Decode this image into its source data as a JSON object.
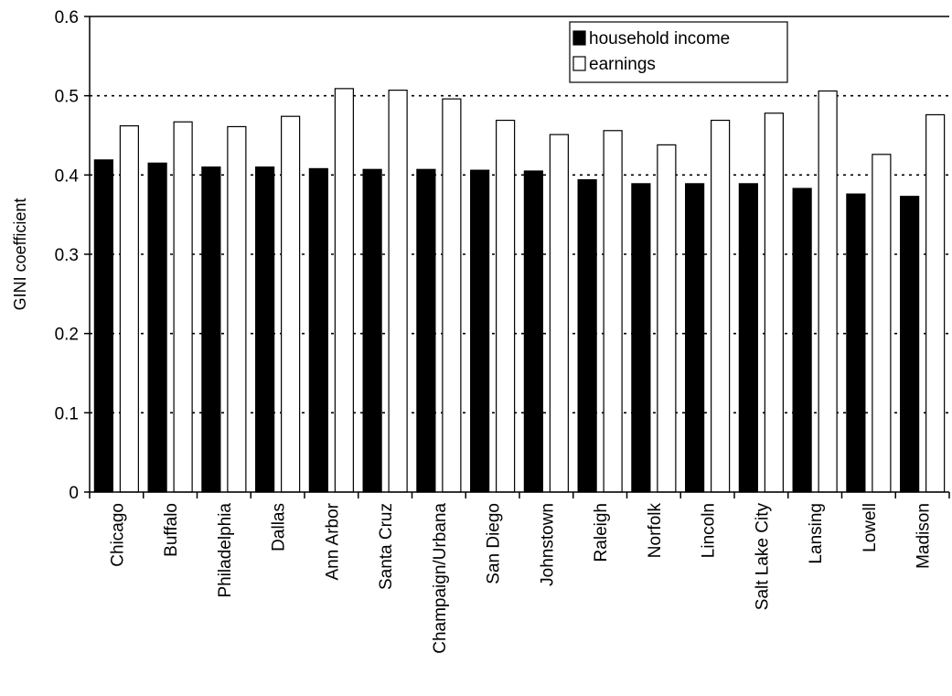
{
  "chart_data": {
    "type": "bar",
    "ylabel": "GINI coefficient",
    "ylim": [
      0,
      0.6
    ],
    "yticks": [
      "0",
      "0.1",
      "0.2",
      "0.3",
      "0.4",
      "0.5",
      "0.6"
    ],
    "ytick_values": [
      0,
      0.1,
      0.2,
      0.3,
      0.4,
      0.5,
      0.6
    ],
    "grid": "dotted horizontal at 0.1–0.5",
    "legend_position": "top-right",
    "categories": [
      "Chicago",
      "Buffalo",
      "Philadelphia",
      "Dallas",
      "Ann Arbor",
      "Santa Cruz",
      "Champaign/Urbana",
      "San Diego",
      "Johnstown",
      "Raleigh",
      "Norfolk",
      "Lincoln",
      "Salt Lake City",
      "Lansing",
      "Lowell",
      "Madison"
    ],
    "series": [
      {
        "name": "household income",
        "color": "#000000",
        "values": [
          0.419,
          0.415,
          0.41,
          0.41,
          0.408,
          0.407,
          0.407,
          0.406,
          0.405,
          0.394,
          0.389,
          0.389,
          0.389,
          0.383,
          0.376,
          0.373
        ]
      },
      {
        "name": "earnings",
        "color": "#ffffff",
        "values": [
          0.462,
          0.467,
          0.461,
          0.474,
          0.509,
          0.507,
          0.496,
          0.469,
          0.451,
          0.456,
          0.438,
          0.469,
          0.478,
          0.506,
          0.426,
          0.476
        ]
      }
    ]
  }
}
